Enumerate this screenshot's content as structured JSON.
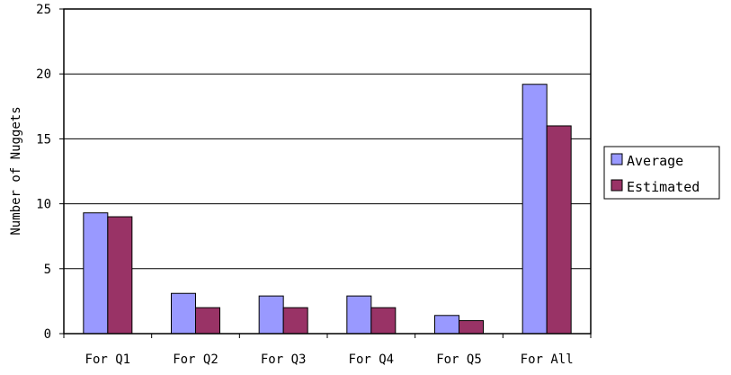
{
  "chart_data": {
    "type": "bar",
    "title": "",
    "xlabel": "",
    "ylabel": "Number of Nuggets",
    "ylim": [
      0,
      25
    ],
    "yticks": [
      0,
      5,
      10,
      15,
      20,
      25
    ],
    "grid": true,
    "legend_position": "right",
    "categories": [
      "For Q1",
      "For Q2",
      "For Q3",
      "For Q4",
      "For Q5",
      "For All"
    ],
    "series": [
      {
        "name": "Average",
        "color": "#9999ff",
        "values": [
          9.3,
          3.1,
          2.9,
          2.9,
          1.4,
          19.2
        ]
      },
      {
        "name": "Estimated",
        "color": "#993366",
        "values": [
          9.0,
          2.0,
          2.0,
          2.0,
          1.0,
          16.0
        ]
      }
    ]
  }
}
